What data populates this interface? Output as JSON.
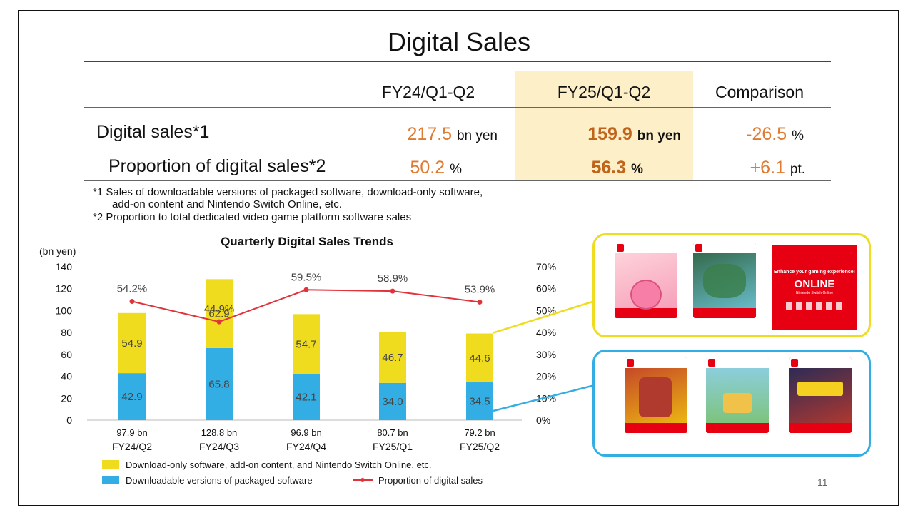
{
  "title": "Digital Sales",
  "table": {
    "col_headers": [
      "FY24/Q1-Q2",
      "FY25/Q1-Q2",
      "Comparison"
    ],
    "rows": [
      {
        "label": "Digital sales*1",
        "fy24": "217.5",
        "fy24_unit": "bn yen",
        "fy25": "159.9",
        "fy25_unit": "bn yen",
        "cmp": "-26.5",
        "cmp_unit": "%"
      },
      {
        "label": "Proportion of digital sales*2",
        "fy24": "50.2",
        "fy24_unit": "%",
        "fy25": "56.3",
        "fy25_unit": "%",
        "cmp": "+6.1",
        "cmp_unit": "pt."
      }
    ]
  },
  "notes": [
    "*1 Sales of downloadable versions of packaged software, download-only software,",
    "add-on content and Nintendo Switch Online, etc.",
    "*2 Proportion to total dedicated video game platform software sales"
  ],
  "page_number": "11",
  "colors": {
    "yellow": "#f0dc1e",
    "blue": "#33aee4",
    "red": "#e0343c",
    "highlight": "#fdefc8",
    "orange": "#e07a30"
  },
  "thumbnails": {
    "top_border": "#f0dc1e",
    "bottom_border": "#33aee4",
    "online_text": "Enhance your gaming experience!",
    "online_logo": "ONLINE",
    "online_sub": "Nintendo Switch Online"
  },
  "chart_data": {
    "type": "bar",
    "title": "Quarterly Digital Sales Trends",
    "ylabel": "(bn yen)",
    "ylim": [
      0,
      140
    ],
    "y_ticks": [
      "0",
      "20",
      "40",
      "60",
      "80",
      "100",
      "120",
      "140"
    ],
    "y2lim": [
      0,
      70
    ],
    "y2_ticks": [
      "0%",
      "10%",
      "20%",
      "30%",
      "40%",
      "50%",
      "60%",
      "70%"
    ],
    "categories": [
      "FY24/Q2",
      "FY24/Q3",
      "FY24/Q4",
      "FY25/Q1",
      "FY25/Q2"
    ],
    "totals": [
      "97.9 bn",
      "128.8 bn",
      "96.9 bn",
      "80.7 bn",
      "79.2 bn"
    ],
    "series": [
      {
        "name": "Downloadable versions of packaged software",
        "color": "#33aee4",
        "values": [
          42.9,
          65.8,
          42.1,
          34.0,
          34.5
        ],
        "labels": [
          "42.9",
          "65.8",
          "42.1",
          "34.0",
          "34.5"
        ]
      },
      {
        "name": "Download-only software, add-on content, and Nintendo Switch Online, etc.",
        "color": "#f0dc1e",
        "values": [
          54.9,
          62.9,
          54.7,
          46.7,
          44.6
        ],
        "labels": [
          "54.9",
          "62.9",
          "54.7",
          "46.7",
          "44.6"
        ]
      },
      {
        "name": "Proportion of digital sales",
        "color": "#e0343c",
        "type": "line",
        "axis": "right",
        "values": [
          54.2,
          44.9,
          59.5,
          58.9,
          53.9
        ],
        "labels": [
          "54.2%",
          "44.9%",
          "59.5%",
          "58.9%",
          "53.9%"
        ]
      }
    ],
    "legend": [
      {
        "name": "Download-only software, add-on content, and Nintendo Switch Online, etc.",
        "color": "#f0dc1e",
        "kind": "box"
      },
      {
        "name": "Downloadable versions of packaged software",
        "color": "#33aee4",
        "kind": "box"
      },
      {
        "name": "Proportion of digital sales",
        "color": "#e0343c",
        "kind": "line"
      }
    ],
    "legend_position": "bottom"
  }
}
